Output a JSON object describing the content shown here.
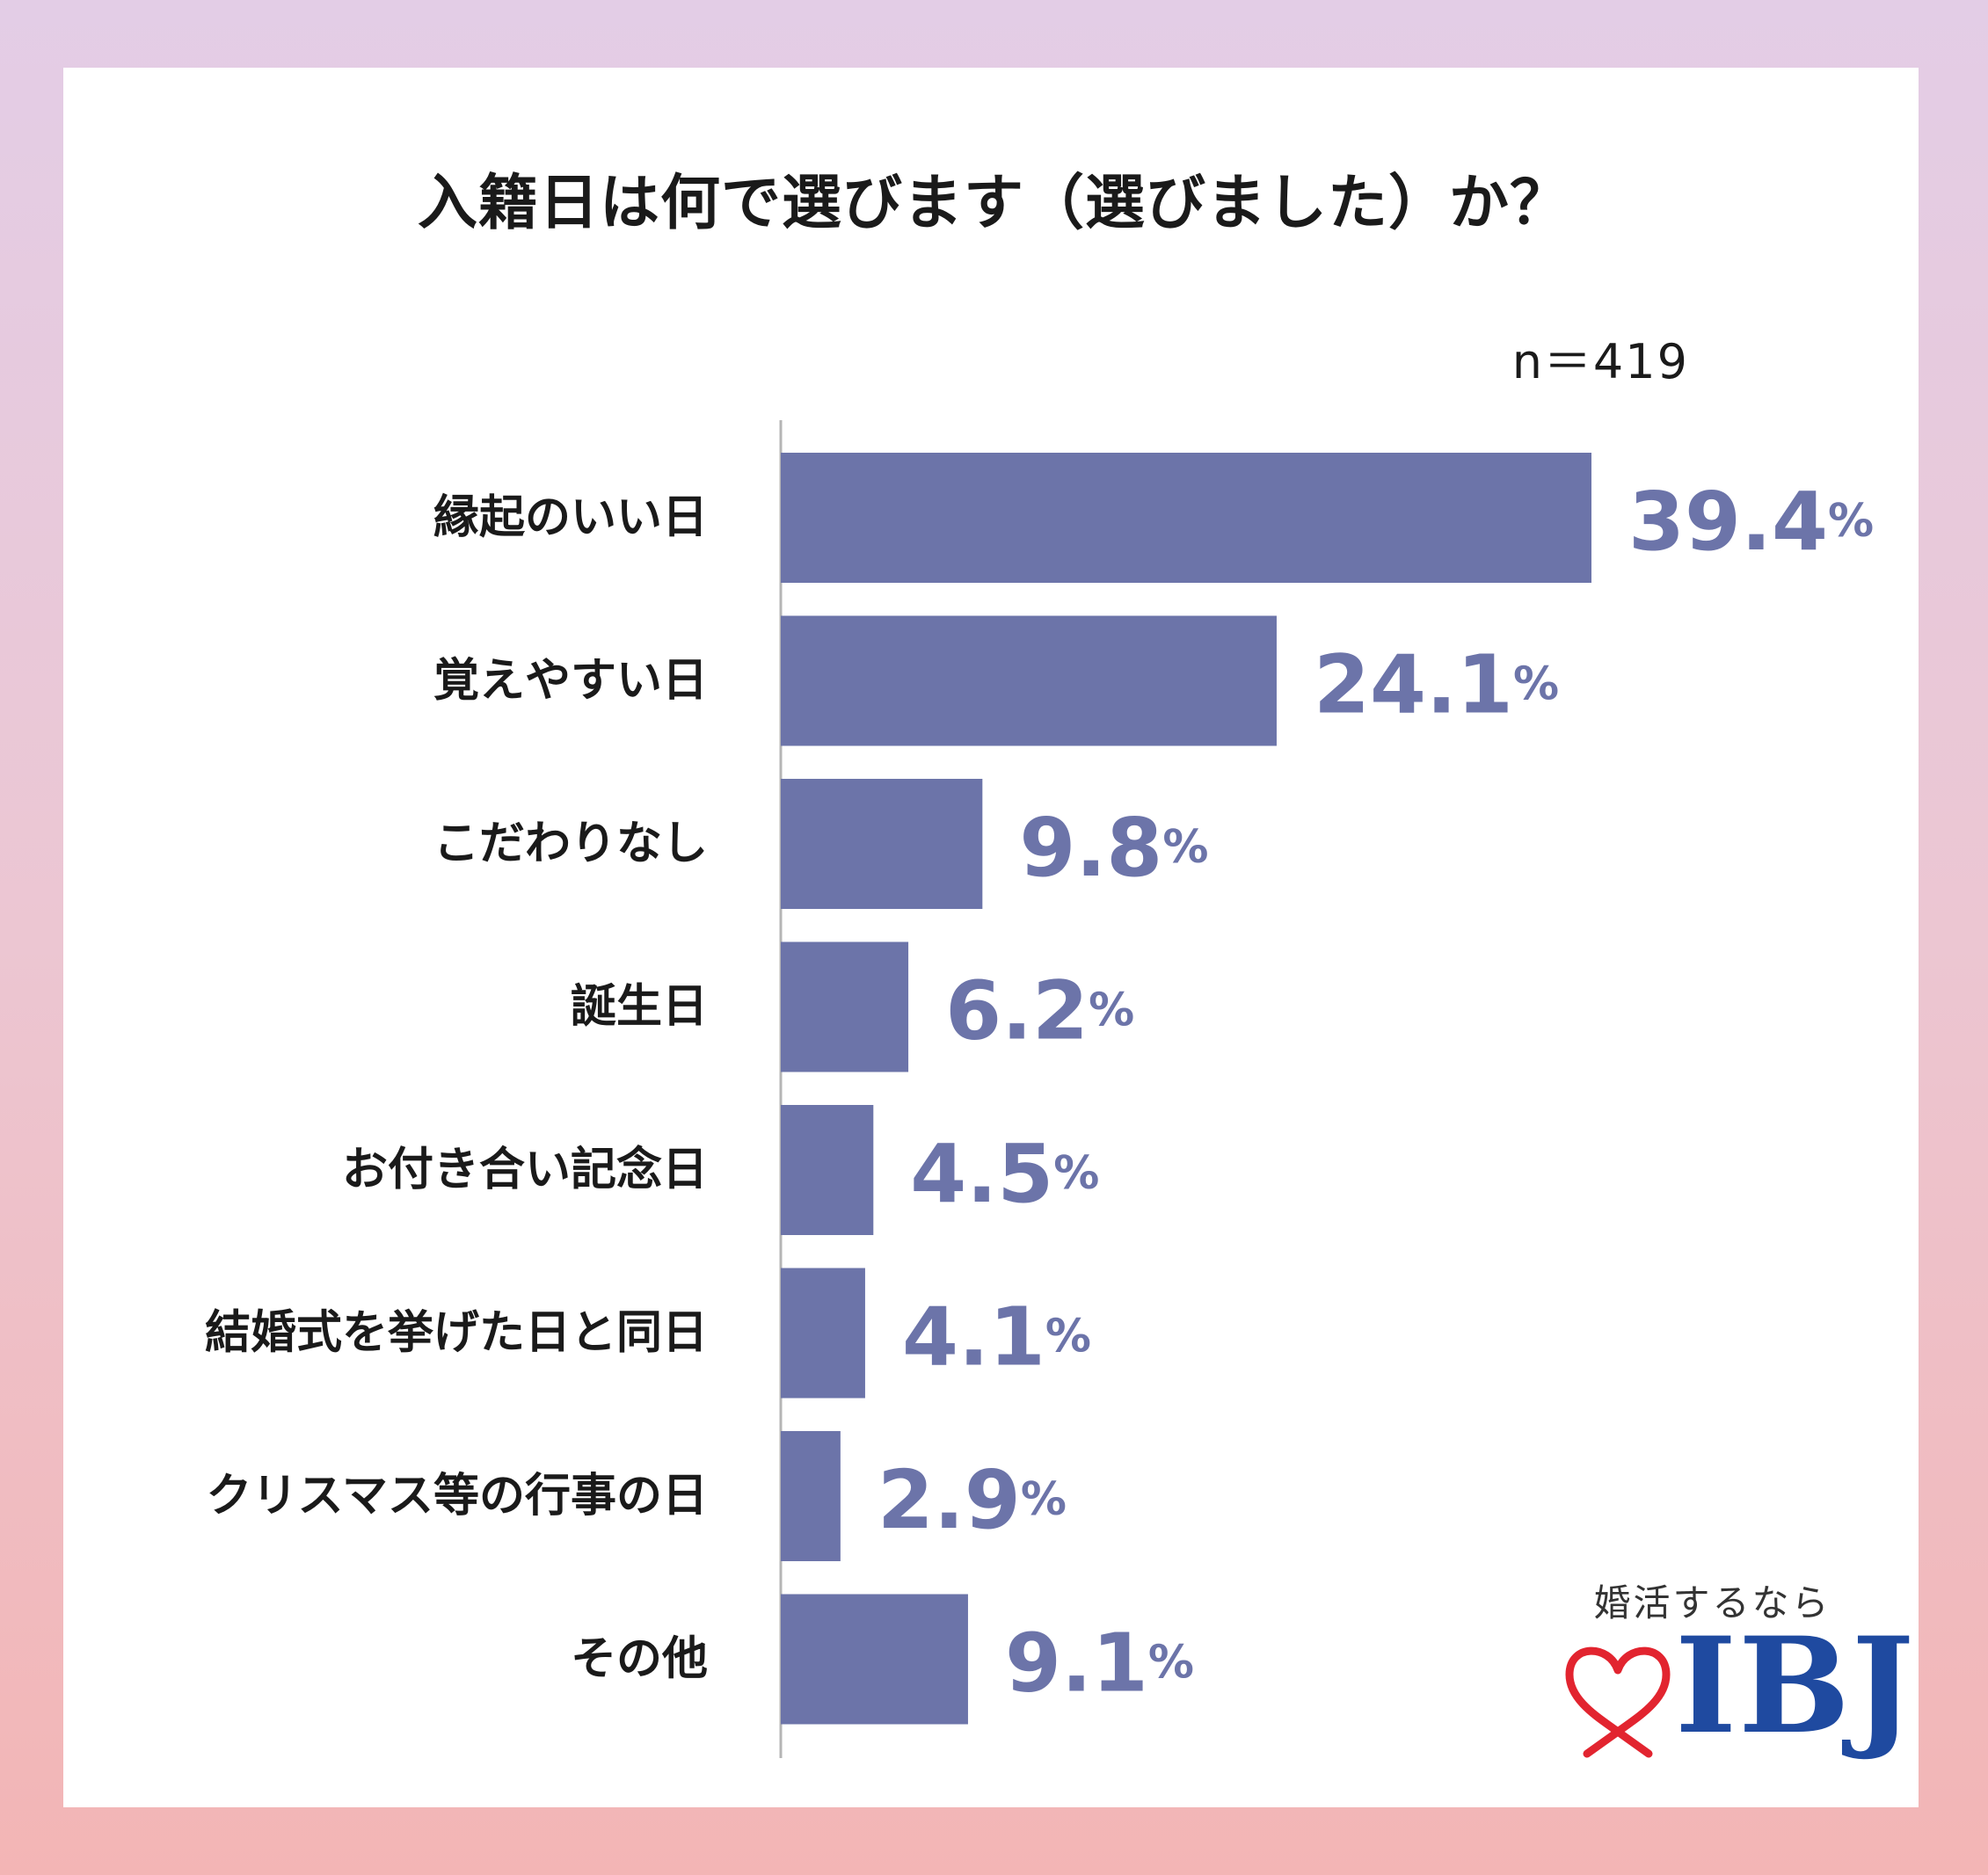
{
  "chart_data": {
    "type": "bar",
    "orientation": "horizontal",
    "title": "入籍日は何で選びます（選びました）か？",
    "sample_size": "n＝419",
    "categories": [
      "縁起のいい日",
      "覚えやすい日",
      "こだわりなし",
      "誕生日",
      "お付き合い記念日",
      "結婚式を挙げた日と同日",
      "クリスマス等の行事の日",
      "その他"
    ],
    "values": [
      39.4,
      24.1,
      9.8,
      6.2,
      4.5,
      4.1,
      2.9,
      9.1
    ],
    "unit": "%",
    "xlim": [
      0,
      39.4
    ],
    "grid": false,
    "bar_color": "#6c74a9",
    "label_color": "#6c74a9"
  },
  "logo": {
    "tagline": "婚活するなら",
    "brand": "IBJ",
    "mark_icon": "heart-ribbon-icon",
    "mark_color": "#e2242f",
    "brand_color": "#1f4aa0"
  }
}
